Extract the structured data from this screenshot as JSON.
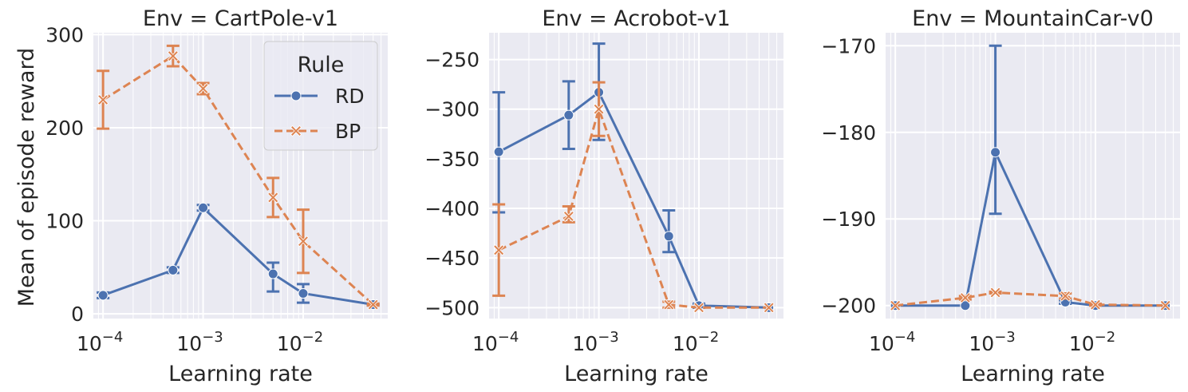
{
  "figure": {
    "ylabel": "Mean of episode reward",
    "legend": {
      "title": "Rule",
      "placement": "upper-right of first panel",
      "entries": [
        {
          "label": "RD",
          "color": "#4c72b0",
          "marker": "circle",
          "dash": "solid"
        },
        {
          "label": "BP",
          "color": "#dd8452",
          "marker": "x",
          "dash": "dashed"
        }
      ]
    }
  },
  "chart_data": [
    {
      "type": "line",
      "title": "Env = CartPole-v1",
      "xlabel": "Learning rate",
      "xscale": "log",
      "xlim": [
        8e-05,
        0.07
      ],
      "ylim": [
        -5,
        302
      ],
      "xticks": [
        {
          "value": 0.0001,
          "base": "10",
          "exp": "−4"
        },
        {
          "value": 0.001,
          "base": "10",
          "exp": "−3"
        },
        {
          "value": 0.01,
          "base": "10",
          "exp": "−2"
        }
      ],
      "yticks": [
        {
          "value": 0,
          "label": "0"
        },
        {
          "value": 100,
          "label": "100"
        },
        {
          "value": 200,
          "label": "200"
        },
        {
          "value": 300,
          "label": "300"
        }
      ],
      "series": [
        {
          "name": "RD",
          "color": "#4c72b0",
          "marker": "circle",
          "dash": "solid",
          "x": [
            0.0001,
            0.0005,
            0.001,
            0.005,
            0.01,
            0.05
          ],
          "y": [
            20,
            47,
            114,
            43,
            22,
            10
          ],
          "err_low": [
            17,
            44,
            111,
            24,
            12,
            9
          ],
          "err_high": [
            23,
            50,
            117,
            55,
            32,
            11
          ]
        },
        {
          "name": "BP",
          "color": "#dd8452",
          "marker": "x",
          "dash": "dashed",
          "x": [
            0.0001,
            0.0005,
            0.001,
            0.005,
            0.01,
            0.05
          ],
          "y": [
            230,
            277,
            242,
            125,
            78,
            10
          ],
          "err_low": [
            199,
            266,
            236,
            104,
            44,
            9
          ],
          "err_high": [
            261,
            288,
            248,
            146,
            112,
            11
          ]
        }
      ]
    },
    {
      "type": "line",
      "title": "Env = Acrobot-v1",
      "xlabel": "Learning rate",
      "xscale": "log",
      "xlim": [
        8e-05,
        0.07
      ],
      "ylim": [
        -511,
        -223
      ],
      "xticks": [
        {
          "value": 0.0001,
          "base": "10",
          "exp": "−4"
        },
        {
          "value": 0.001,
          "base": "10",
          "exp": "−3"
        },
        {
          "value": 0.01,
          "base": "10",
          "exp": "−2"
        }
      ],
      "yticks": [
        {
          "value": -250,
          "label": "−250"
        },
        {
          "value": -300,
          "label": "−300"
        },
        {
          "value": -350,
          "label": "−350"
        },
        {
          "value": -400,
          "label": "−400"
        },
        {
          "value": -450,
          "label": "−450"
        },
        {
          "value": -500,
          "label": "−500"
        }
      ],
      "series": [
        {
          "name": "RD",
          "color": "#4c72b0",
          "marker": "circle",
          "dash": "solid",
          "x": [
            0.0001,
            0.0005,
            0.001,
            0.005,
            0.01,
            0.05
          ],
          "y": [
            -343,
            -306,
            -283,
            -428,
            -498,
            -500
          ],
          "err_low": [
            -404,
            -340,
            -331,
            -444,
            -500,
            -500
          ],
          "err_high": [
            -283,
            -272,
            -234,
            -402,
            -496,
            -500
          ]
        },
        {
          "name": "BP",
          "color": "#dd8452",
          "marker": "x",
          "dash": "dashed",
          "x": [
            0.0001,
            0.0005,
            0.001,
            0.005,
            0.01,
            0.05
          ],
          "y": [
            -442,
            -408,
            -300,
            -497,
            -500,
            -500
          ],
          "err_low": [
            -488,
            -414,
            -327,
            -500,
            -500,
            -500
          ],
          "err_high": [
            -396,
            -398,
            -273,
            -494,
            -500,
            -500
          ]
        }
      ]
    },
    {
      "type": "line",
      "title": "Env = MountainCar-v0",
      "xlabel": "Learning rate",
      "xscale": "log",
      "xlim": [
        8e-05,
        0.07
      ],
      "ylim": [
        -201.5,
        -168.5
      ],
      "xticks": [
        {
          "value": 0.0001,
          "base": "10",
          "exp": "−4"
        },
        {
          "value": 0.001,
          "base": "10",
          "exp": "−3"
        },
        {
          "value": 0.01,
          "base": "10",
          "exp": "−2"
        }
      ],
      "yticks": [
        {
          "value": -170,
          "label": "−170"
        },
        {
          "value": -180,
          "label": "−180"
        },
        {
          "value": -190,
          "label": "−190"
        },
        {
          "value": -200,
          "label": "−200"
        }
      ],
      "series": [
        {
          "name": "RD",
          "color": "#4c72b0",
          "marker": "circle",
          "dash": "solid",
          "x": [
            0.0001,
            0.0005,
            0.001,
            0.005,
            0.01,
            0.05
          ],
          "y": [
            -200,
            -200,
            -182.3,
            -199.6,
            -200,
            -200
          ],
          "err_low": [
            -200,
            -200,
            -189.4,
            -199.8,
            -200,
            -200
          ],
          "err_high": [
            -200,
            -200,
            -170,
            -199.4,
            -200,
            -200
          ]
        },
        {
          "name": "BP",
          "color": "#dd8452",
          "marker": "x",
          "dash": "dashed",
          "x": [
            0.0001,
            0.0005,
            0.001,
            0.005,
            0.01,
            0.05
          ],
          "y": [
            -200,
            -199.1,
            -198.5,
            -198.9,
            -199.9,
            -200
          ],
          "err_low": [
            -200,
            -199.3,
            -198.6,
            -199.2,
            -200,
            -200
          ],
          "err_high": [
            -200,
            -198.9,
            -198.4,
            -198.6,
            -199.8,
            -200
          ]
        }
      ]
    }
  ]
}
